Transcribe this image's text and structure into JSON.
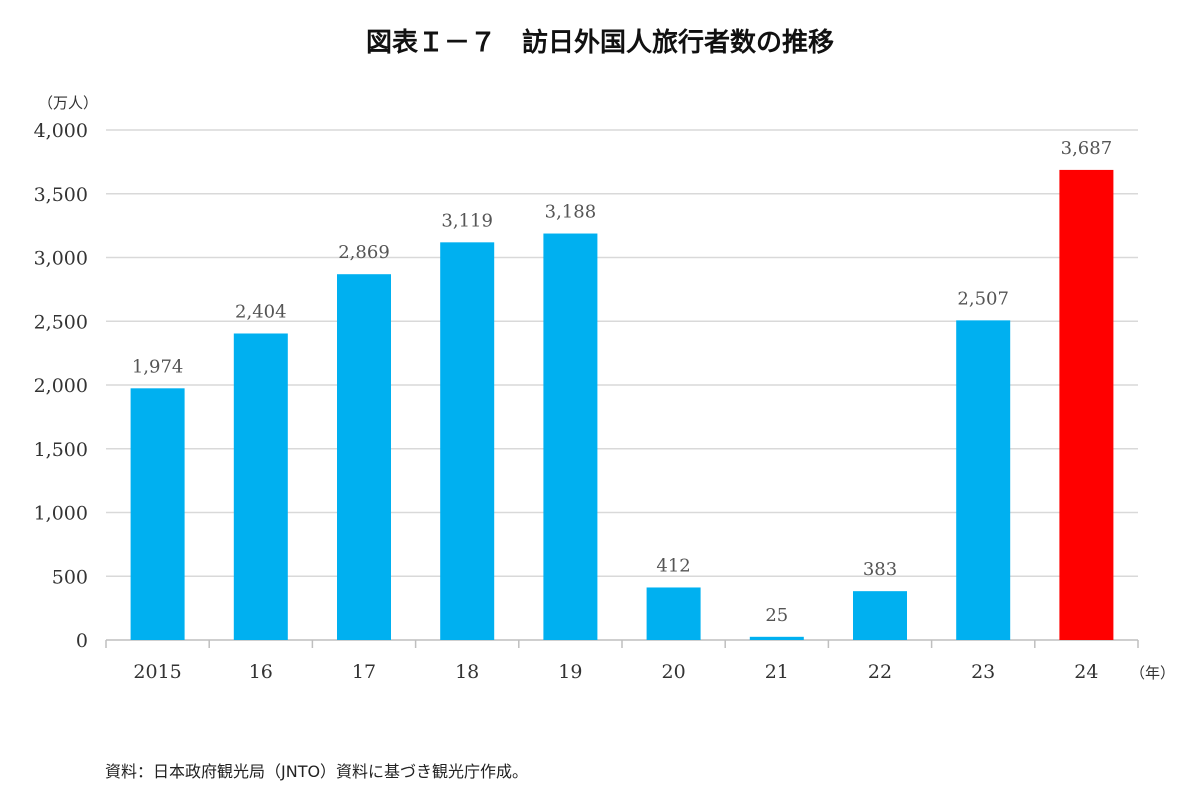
{
  "chart_data": {
    "type": "bar",
    "title": "図表Ｉ－７　訪日外国人旅行者数の推移",
    "y_unit_label": "（万人）",
    "x_unit_label": "（年）",
    "categories": [
      "2015",
      "16",
      "17",
      "18",
      "19",
      "20",
      "21",
      "22",
      "23",
      "24"
    ],
    "values": [
      1974,
      2404,
      2869,
      3119,
      3188,
      412,
      25,
      383,
      2507,
      3687
    ],
    "value_labels": [
      "1,974",
      "2,404",
      "2,869",
      "3,119",
      "3,188",
      "412",
      "25",
      "383",
      "2,507",
      "3,687"
    ],
    "y_ticks": [
      0,
      500,
      1000,
      1500,
      2000,
      2500,
      3000,
      3500,
      4000
    ],
    "y_tick_labels": [
      "0",
      "500",
      "1,000",
      "1,500",
      "2,000",
      "2,500",
      "3,000",
      "3,500",
      "4,000"
    ],
    "ylim": [
      0,
      4000
    ],
    "grid": true,
    "legend": "none",
    "bar_color": "#00b0f0",
    "highlight_color": "#ff0000",
    "highlight_index": 9
  },
  "source_note": "資料：日本政府観光局（JNTO）資料に基づき観光庁作成。"
}
